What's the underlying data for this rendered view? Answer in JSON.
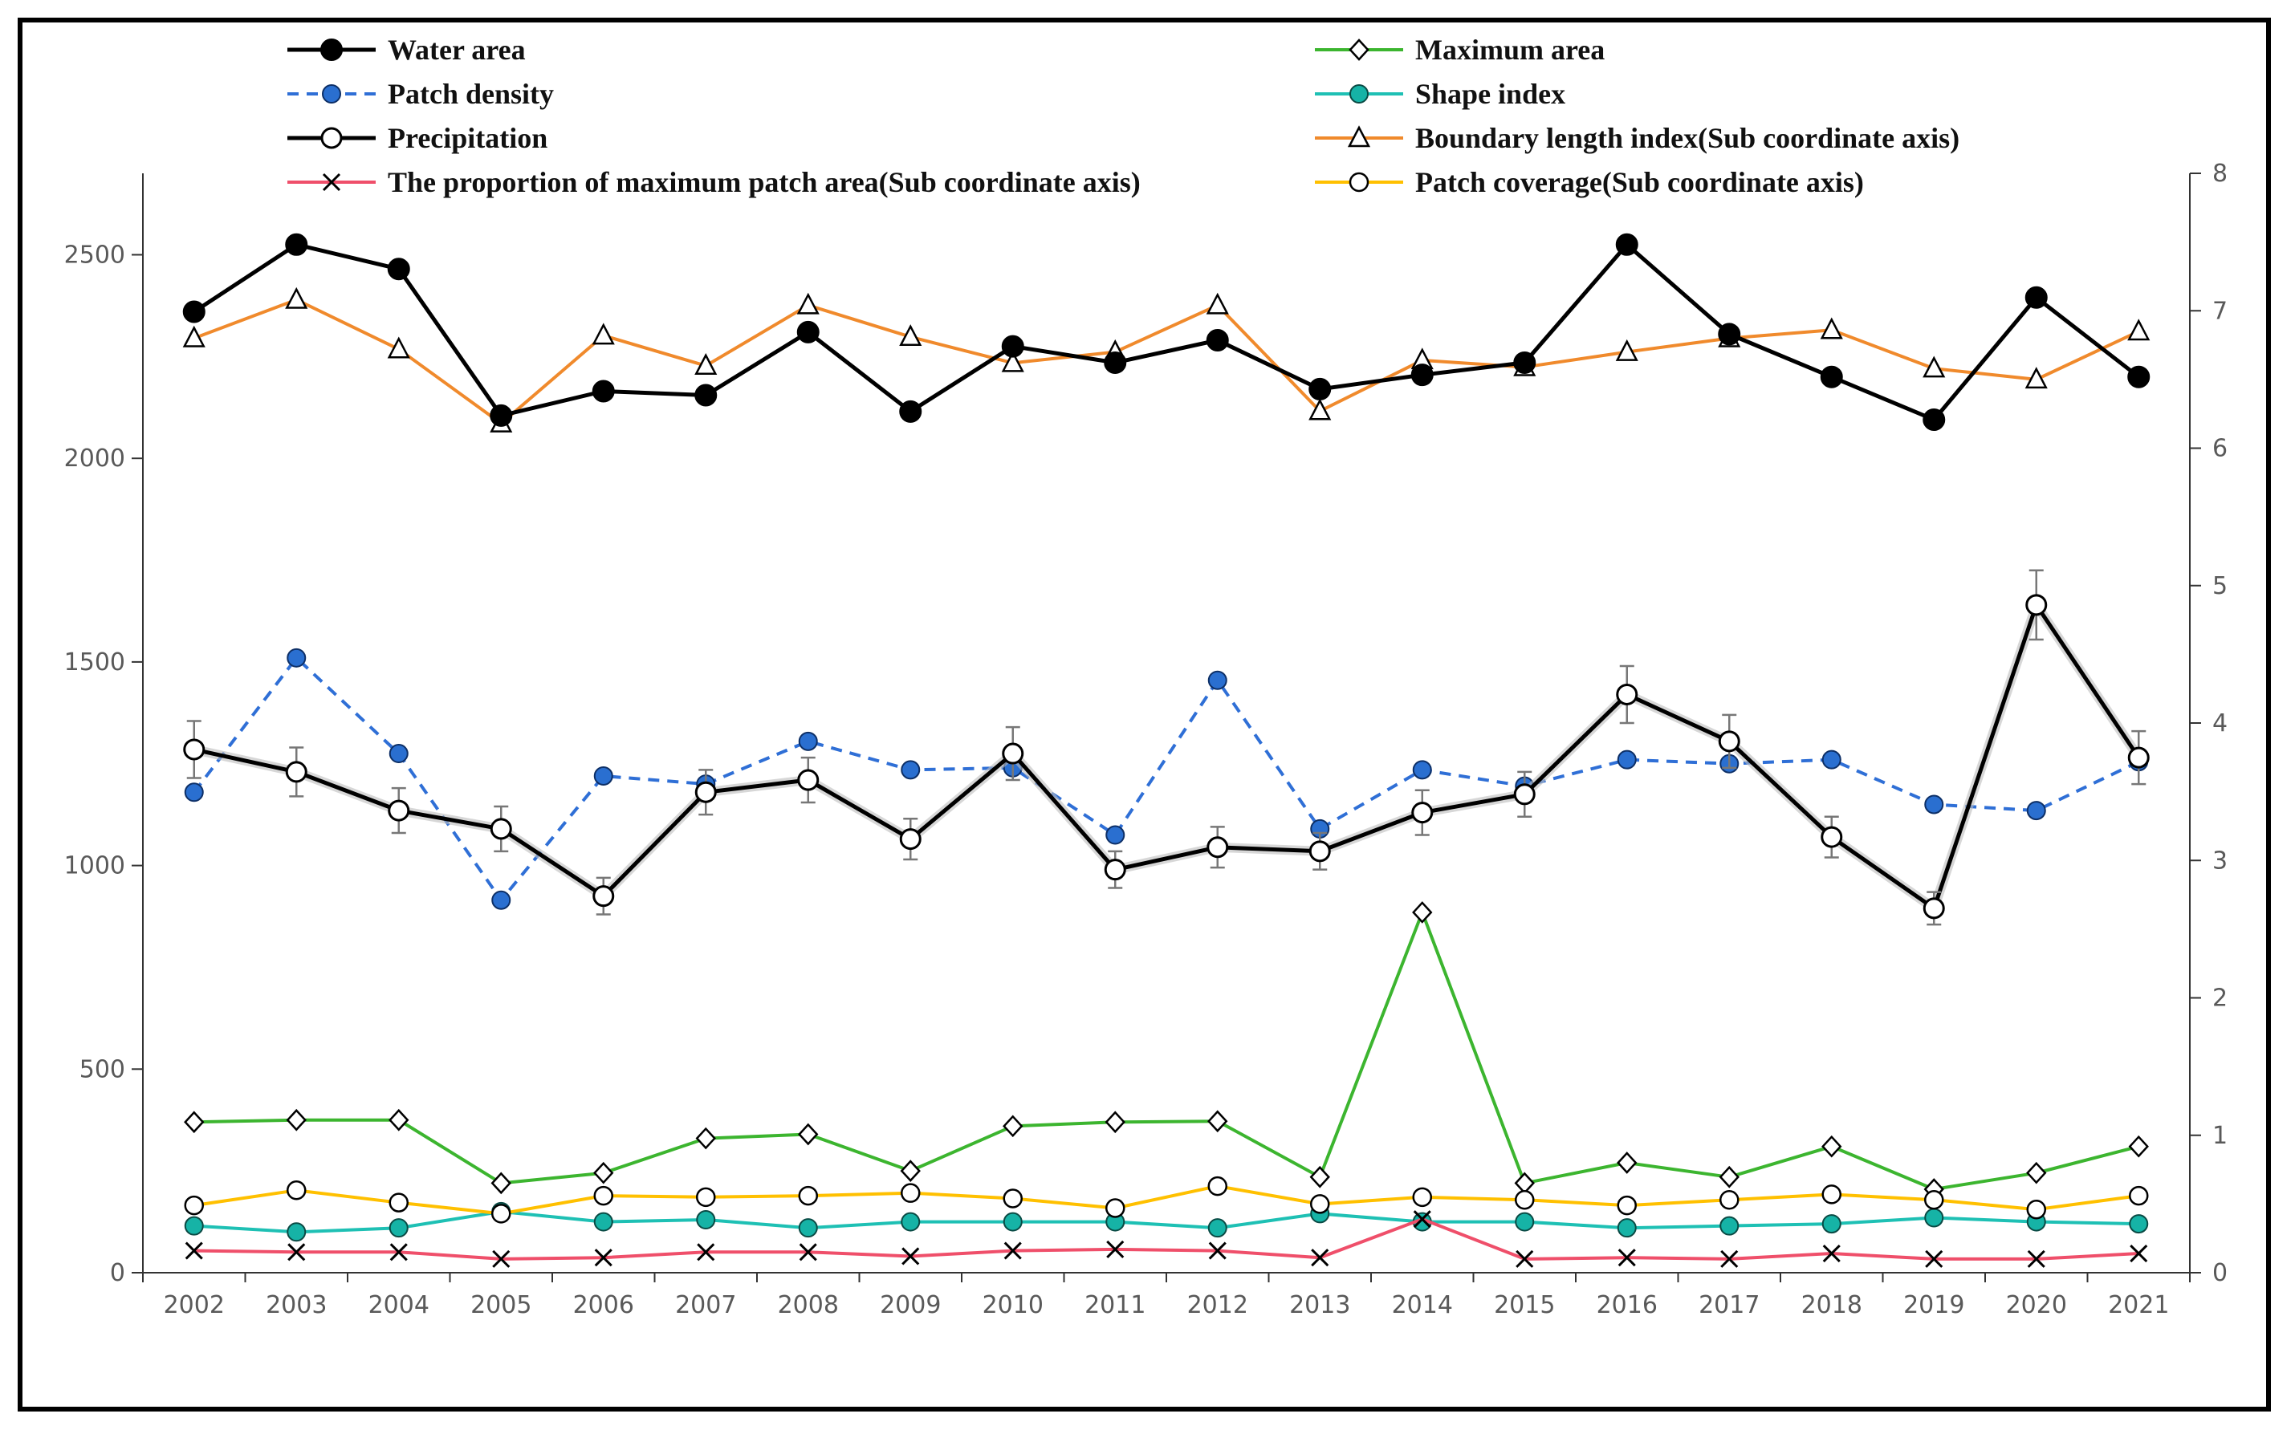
{
  "chart_data": {
    "type": "line",
    "title": "",
    "xlabel": "",
    "ylabel": "",
    "x": [
      "2002",
      "2003",
      "2004",
      "2005",
      "2006",
      "2007",
      "2008",
      "2009",
      "2010",
      "2011",
      "2012",
      "2013",
      "2014",
      "2015",
      "2016",
      "2017",
      "2018",
      "2019",
      "2020",
      "2021"
    ],
    "ylim_left": [
      0,
      2700
    ],
    "yticks_left": [
      "0",
      "500",
      "1000",
      "1500",
      "2000",
      "2500"
    ],
    "ylim_right": [
      0,
      8
    ],
    "yticks_right": [
      "0",
      "1",
      "2",
      "3",
      "4",
      "5",
      "6",
      "7",
      "8"
    ],
    "grid": false,
    "legend_position": "top",
    "series": [
      {
        "name": "Water area",
        "axis": "left",
        "color": "#000000",
        "marker": "filled-circle",
        "values": [
          2360,
          2525,
          2465,
          2105,
          2165,
          2155,
          2310,
          2115,
          2275,
          2235,
          2290,
          2170,
          2205,
          2235,
          2525,
          2305,
          2200,
          2095,
          2395,
          2200
        ]
      },
      {
        "name": "Maximum area",
        "axis": "left",
        "color": "#3cb52f",
        "marker": "diamond",
        "values": [
          370,
          375,
          375,
          220,
          245,
          330,
          340,
          250,
          360,
          370,
          372,
          235,
          885,
          220,
          270,
          235,
          310,
          205,
          245,
          310
        ]
      },
      {
        "name": "Patch density",
        "axis": "left",
        "color": "#2f6fd6",
        "marker": "filled-circle-blue",
        "dashed": true,
        "values": [
          1180,
          1510,
          1275,
          915,
          1220,
          1200,
          1305,
          1235,
          1240,
          1075,
          1455,
          1090,
          1235,
          1195,
          1260,
          1250,
          1260,
          1150,
          1135,
          1255
        ]
      },
      {
        "name": "Shape index",
        "axis": "left",
        "color": "#1ec0b4",
        "marker": "filled-circle-teal",
        "values": [
          115,
          100,
          110,
          150,
          125,
          130,
          110,
          125,
          125,
          125,
          110,
          145,
          125,
          125,
          110,
          115,
          120,
          135,
          125,
          120
        ]
      },
      {
        "name": "Precipitation",
        "axis": "left",
        "color": "#000000",
        "marker": "open-circle",
        "values": [
          1285,
          1230,
          1135,
          1090,
          925,
          1180,
          1210,
          1065,
          1275,
          990,
          1045,
          1035,
          1130,
          1175,
          1420,
          1305,
          1070,
          895,
          1640,
          1265
        ],
        "errors": [
          70,
          60,
          55,
          55,
          45,
          55,
          55,
          50,
          65,
          45,
          50,
          45,
          55,
          55,
          70,
          65,
          50,
          40,
          85,
          65
        ]
      },
      {
        "name": "Boundary length index(Sub coordinate axis)",
        "axis": "right",
        "color": "#f08a2c",
        "marker": "triangle",
        "values": [
          6.8,
          7.08,
          6.72,
          6.18,
          6.82,
          6.6,
          7.04,
          6.81,
          6.62,
          6.7,
          7.04,
          6.27,
          6.64,
          6.59,
          6.7,
          6.8,
          6.86,
          6.58,
          6.5,
          6.85
        ]
      },
      {
        "name": "The proportion of maximum patch area(Sub coordinate axis)",
        "axis": "right",
        "color": "#ef4f6a",
        "marker": "cross",
        "values": [
          0.16,
          0.15,
          0.15,
          0.1,
          0.11,
          0.15,
          0.15,
          0.12,
          0.16,
          0.17,
          0.16,
          0.11,
          0.39,
          0.1,
          0.11,
          0.1,
          0.14,
          0.1,
          0.1,
          0.14
        ]
      },
      {
        "name": "Patch coverage(Sub coordinate axis)",
        "axis": "right",
        "color": "#ffc000",
        "marker": "open-circle-yellow",
        "values": [
          0.49,
          0.6,
          0.51,
          0.43,
          0.56,
          0.55,
          0.56,
          0.58,
          0.54,
          0.47,
          0.63,
          0.5,
          0.55,
          0.53,
          0.49,
          0.53,
          0.57,
          0.53,
          0.46,
          0.56
        ]
      }
    ]
  }
}
